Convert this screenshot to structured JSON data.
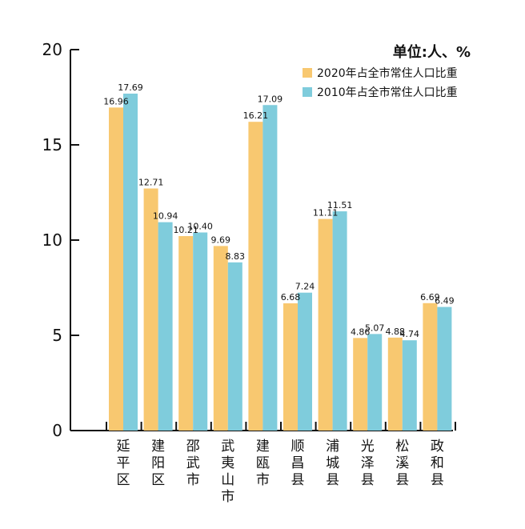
{
  "chart_data": {
    "type": "bar",
    "unit_label": "单位:人、%",
    "categories": [
      "延平区",
      "建阳区",
      "邵武市",
      "武夷山市",
      "建瓯市",
      "顺昌县",
      "浦城县",
      "光泽县",
      "松溪县",
      "政和县"
    ],
    "series": [
      {
        "name": "2020年占全市常住人口比重",
        "color": "#F8C870",
        "values": [
          16.96,
          12.71,
          10.21,
          9.69,
          16.21,
          6.68,
          11.11,
          4.86,
          4.88,
          6.69
        ],
        "labels": [
          "16.96",
          "12.71",
          "10.21",
          "9.69",
          "16.21",
          "6.68",
          "11.11",
          "4.86",
          "4.88",
          "6.69"
        ]
      },
      {
        "name": "2010年占全市常住人口比重",
        "color": "#7FCCDC",
        "values": [
          17.69,
          10.94,
          10.4,
          8.83,
          17.09,
          7.24,
          11.51,
          5.07,
          4.74,
          6.49
        ],
        "labels": [
          "17.69",
          "10.94",
          "10.40",
          "8.83",
          "17.09",
          "7.24",
          "11.51",
          "5.07",
          "4.74",
          "6.49"
        ]
      }
    ],
    "ylim": [
      0,
      20
    ],
    "yticks": [
      "0",
      "5",
      "10",
      "15",
      "20"
    ],
    "legend_position": "top-right",
    "grid": false
  }
}
